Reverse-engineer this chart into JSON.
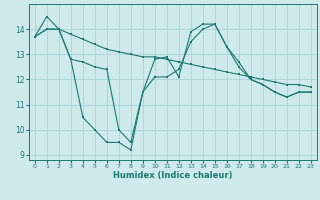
{
  "xlabel": "Humidex (Indice chaleur)",
  "bg_color": "#ceeaed",
  "grid_color": "#aad4d8",
  "line_color": "#1a7a6e",
  "xlim": [
    -0.5,
    23.5
  ],
  "ylim": [
    8.8,
    15.0
  ],
  "yticks": [
    9,
    10,
    11,
    12,
    13,
    14
  ],
  "xticks": [
    0,
    1,
    2,
    3,
    4,
    5,
    6,
    7,
    8,
    9,
    10,
    11,
    12,
    13,
    14,
    15,
    16,
    17,
    18,
    19,
    20,
    21,
    22,
    23
  ],
  "series1_x": [
    0,
    1,
    2,
    3,
    4,
    5,
    6,
    7,
    8,
    9,
    10,
    11,
    12,
    13,
    14,
    15,
    16,
    17,
    18,
    19,
    20,
    21,
    22,
    23
  ],
  "series1_y": [
    13.7,
    14.5,
    14.0,
    13.8,
    13.6,
    13.4,
    13.2,
    13.1,
    13.0,
    12.9,
    12.9,
    12.8,
    12.7,
    12.6,
    12.5,
    12.4,
    12.3,
    12.2,
    12.1,
    12.0,
    11.9,
    11.8,
    11.8,
    11.7
  ],
  "series2_x": [
    0,
    1,
    2,
    3,
    4,
    5,
    6,
    7,
    8,
    9,
    10,
    11,
    12,
    13,
    14,
    15,
    16,
    17,
    18,
    19,
    20,
    21,
    22,
    23
  ],
  "series2_y": [
    13.7,
    14.0,
    14.0,
    12.8,
    10.5,
    10.0,
    9.5,
    9.5,
    9.2,
    11.5,
    12.8,
    12.9,
    12.1,
    13.9,
    14.2,
    14.2,
    13.3,
    12.5,
    12.0,
    11.8,
    11.5,
    11.3,
    11.5,
    11.5
  ],
  "series3_x": [
    0,
    1,
    2,
    3,
    4,
    5,
    6,
    7,
    8,
    9,
    10,
    11,
    12,
    13,
    14,
    15,
    16,
    17,
    18,
    19,
    20,
    21,
    22,
    23
  ],
  "series3_y": [
    13.7,
    14.0,
    14.0,
    12.8,
    12.7,
    12.5,
    12.4,
    10.0,
    9.5,
    11.5,
    12.1,
    12.1,
    12.4,
    13.5,
    14.0,
    14.2,
    13.3,
    12.7,
    12.0,
    11.8,
    11.5,
    11.3,
    11.5,
    11.5
  ]
}
